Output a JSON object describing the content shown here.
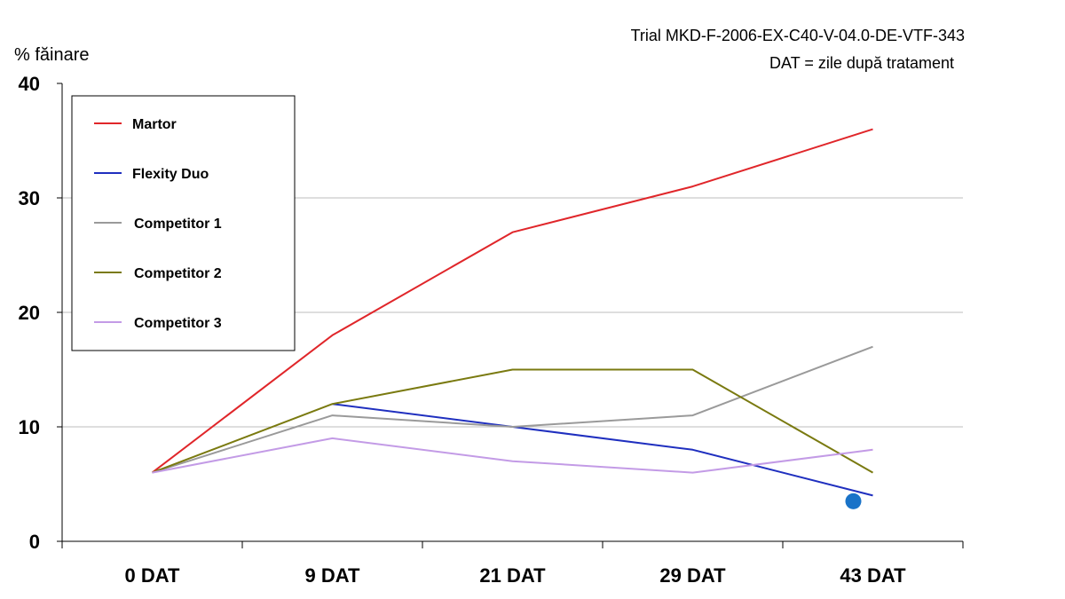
{
  "chart_data": {
    "type": "line",
    "categories": [
      "0 DAT",
      "9 DAT",
      "21 DAT",
      "29 DAT",
      "43 DAT"
    ],
    "ylabel": "% făinare",
    "ylim": [
      0,
      40
    ],
    "yticks": [
      "0",
      "10",
      "20",
      "30",
      "40"
    ],
    "grid": true,
    "legend_position": "top-left",
    "annotations": {
      "trial": "Trial MKD-F-2006-EX-C40-V-04.0-DE-VTF-343",
      "dat_note": "DAT = zile după tratament"
    },
    "series": [
      {
        "name": "Martor",
        "color": "#e0262a",
        "values": [
          6,
          18,
          27,
          31,
          36
        ]
      },
      {
        "name": "Flexity Duo",
        "color": "#1f2fbf",
        "values": [
          null,
          12,
          10,
          8,
          4
        ]
      },
      {
        "name": "Competitor 1",
        "color": "#9a9a9a",
        "values": [
          6,
          11,
          10,
          11,
          17
        ]
      },
      {
        "name": "Competitor 2",
        "color": "#7a7a10",
        "values": [
          6,
          12,
          15,
          15,
          6
        ]
      },
      {
        "name": "Competitor 3",
        "color": "#c39be6",
        "values": [
          6,
          9,
          7,
          6,
          8
        ]
      }
    ],
    "marker": {
      "category": "43 DAT",
      "value": 3.5,
      "color": "#1a73c8"
    }
  }
}
